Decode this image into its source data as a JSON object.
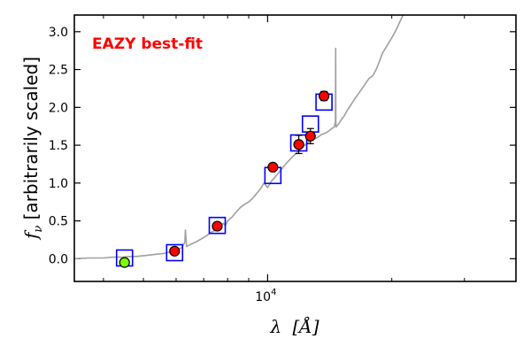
{
  "chart_data": {
    "type": "scatter",
    "title": "",
    "annotation": "EAZY best-fit",
    "annotation_color": "#ff0000",
    "xlabel": "λ [Å]",
    "ylabel": "f_ν [arbitrarily scaled]",
    "ylabel_symbol": "f",
    "ylabel_subscript": "ν",
    "ylabel_text": " [arbitrarily scaled]",
    "xlabel_symbol": "λ",
    "xlabel_unit": "[Å]",
    "x_scale": "log",
    "xlim": [
      3400,
      40000
    ],
    "ylim": [
      -0.3,
      3.22
    ],
    "y_ticks": [
      "0.0",
      "0.5",
      "1.0",
      "1.5",
      "2.0",
      "2.5",
      "3.0"
    ],
    "x_major_tick": {
      "value": 10000,
      "label_base": "10",
      "label_exp": "4"
    },
    "x_minor_ticks": [
      4000,
      5000,
      6000,
      7000,
      8000,
      9000,
      20000,
      30000
    ],
    "colors": {
      "template": "#a0a0a0",
      "model_box": "#0000ff",
      "observed": "#ff0000",
      "observed_low": "#7cfc00",
      "marker_edge": "#000000"
    },
    "series": [
      {
        "name": "template",
        "kind": "line",
        "x": [
          3400,
          3700,
          4000,
          4200,
          4450,
          4600,
          4800,
          5000,
          5200,
          5400,
          5600,
          5800,
          6000,
          6200,
          6300,
          6320,
          6360,
          6500,
          6700,
          6900,
          7100,
          7300,
          7500,
          7700,
          7800,
          7900,
          8000,
          8200,
          8400,
          8600,
          8800,
          9000,
          9200,
          9400,
          9600,
          9800,
          10000,
          10200,
          10500,
          10800,
          11100,
          11500,
          11900,
          12300,
          12600,
          12900,
          13200,
          13500,
          13800,
          14100,
          14300,
          14500,
          14600,
          14620,
          14640,
          14660,
          14700,
          14900,
          15100,
          15300,
          15600,
          15900,
          16300,
          16700,
          17200,
          17600,
          18000,
          18400,
          18700,
          19000,
          19400,
          19800,
          20200,
          20600,
          21000,
          21300
        ],
        "y": [
          0.0,
          0.01,
          0.01,
          0.02,
          0.02,
          0.03,
          0.03,
          0.04,
          0.05,
          0.06,
          0.07,
          0.09,
          0.1,
          0.15,
          0.22,
          0.38,
          0.16,
          0.19,
          0.22,
          0.26,
          0.3,
          0.35,
          0.38,
          0.42,
          0.47,
          0.44,
          0.5,
          0.55,
          0.62,
          0.68,
          0.72,
          0.75,
          0.8,
          0.86,
          0.92,
          1.0,
          0.94,
          1.02,
          1.1,
          1.18,
          1.26,
          1.35,
          1.42,
          1.5,
          1.55,
          1.58,
          1.6,
          1.64,
          1.66,
          1.69,
          1.72,
          1.74,
          1.8,
          2.78,
          1.78,
          1.74,
          1.75,
          1.79,
          1.84,
          1.88,
          1.96,
          2.03,
          2.12,
          2.2,
          2.3,
          2.38,
          2.42,
          2.52,
          2.62,
          2.72,
          2.8,
          2.88,
          2.96,
          3.05,
          3.15,
          3.22
        ]
      },
      {
        "name": "model",
        "kind": "square_marker",
        "x": [
          4500,
          5950,
          7550,
          10300,
          11900,
          12700,
          13700
        ],
        "y": [
          0.01,
          0.08,
          0.44,
          1.1,
          1.53,
          1.78,
          2.07
        ]
      },
      {
        "name": "observed",
        "kind": "errorbar_marker",
        "x": [
          4500,
          5950,
          7550,
          10300,
          11900,
          12700,
          13700
        ],
        "y": [
          -0.05,
          0.1,
          0.43,
          1.21,
          1.51,
          1.62,
          2.15
        ],
        "yerr": [
          0.02,
          0.03,
          0.03,
          0.04,
          0.12,
          0.1,
          0.06
        ]
      }
    ]
  }
}
